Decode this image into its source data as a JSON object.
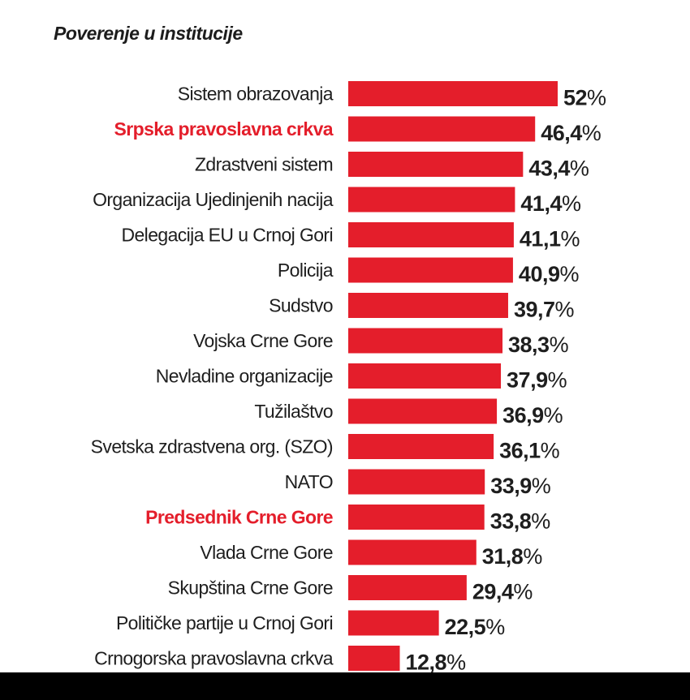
{
  "chart_data": {
    "type": "bar",
    "orientation": "horizontal",
    "title": "Poverenje u institucije",
    "value_suffix": "%",
    "xlim": [
      0,
      52
    ],
    "categories": [
      "Sistem obrazovanja",
      "Srpska pravoslavna crkva",
      "Zdrastveni sistem",
      "Organizacija Ujedinjenih nacija",
      "Delegacija EU u Crnoj Gori",
      "Policija",
      "Sudstvo",
      "Vojska Crne Gore",
      "Nevladine organizacije",
      "Tužilaštvo",
      "Svetska zdrastvena org. (SZO)",
      "NATO",
      "Predsednik Crne Gore",
      "Vlada Crne Gore",
      "Skupština Crne Gore",
      "Političke partije u  Crnoj Gori",
      "Crnogorska pravoslavna crkva"
    ],
    "values": [
      52,
      46.4,
      43.4,
      41.4,
      41.1,
      40.9,
      39.7,
      38.3,
      37.9,
      36.9,
      36.1,
      33.9,
      33.8,
      31.8,
      29.4,
      22.5,
      12.8
    ],
    "value_labels": [
      "52",
      "46,4",
      "43,4",
      "41,4",
      "41,1",
      "40,9",
      "39,7",
      "38,3",
      "37,9",
      "36,9",
      "36,1",
      "33,9",
      "33,8",
      "31,8",
      "29,4",
      "22,5",
      "12,8"
    ],
    "highlighted": [
      false,
      true,
      false,
      false,
      false,
      false,
      false,
      false,
      false,
      false,
      false,
      false,
      true,
      false,
      false,
      false,
      false
    ],
    "bar_color": "#e41e2b",
    "highlight_color": "#e41e2b",
    "text_color": "#1e1e1e"
  }
}
